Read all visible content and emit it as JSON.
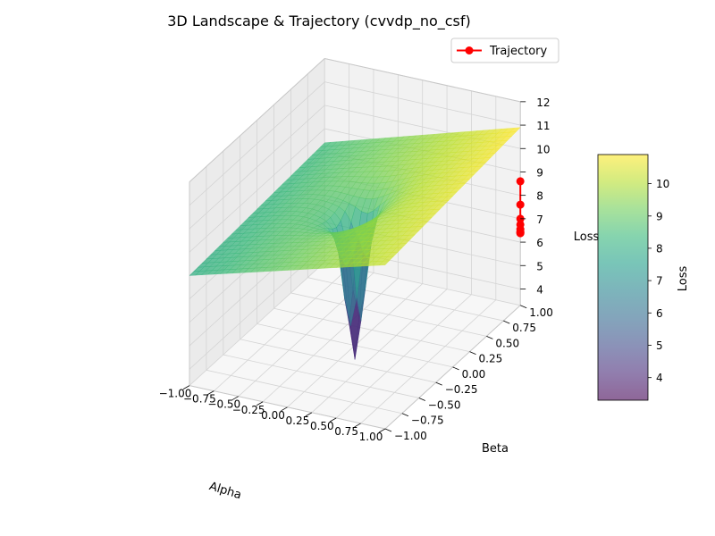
{
  "chart_data": {
    "type": "surface3d",
    "title": "3D Landscape & Trajectory (cvvdp_no_csf)",
    "xlabel": "Alpha",
    "ylabel": "Beta",
    "zlabel": "Loss",
    "xlim": [
      -1.0,
      1.0
    ],
    "ylim": [
      -1.0,
      1.0
    ],
    "zlim": [
      3.3,
      12
    ],
    "x_ticks": [
      "−1.00",
      "−0.75",
      "−0.50",
      "−0.25",
      "0.00",
      "0.25",
      "0.50",
      "0.75",
      "1.00"
    ],
    "y_ticks": [
      "−1.00",
      "−0.75",
      "−0.50",
      "−0.25",
      "0.00",
      "0.25",
      "0.50",
      "0.75",
      "1.00"
    ],
    "z_ticks": [
      "4",
      "5",
      "6",
      "7",
      "8",
      "9",
      "10",
      "11",
      "12"
    ],
    "grid": true,
    "colormap": "viridis",
    "surface": {
      "x": [
        -1.0,
        1.0
      ],
      "y": [
        -1.0,
        1.0
      ],
      "loss_corners": {
        "alpha_-1_beta_-1": 8.0,
        "alpha_1_beta_-1": 10.3,
        "alpha_-1_beta_1": 8.4,
        "alpha_1_beta_1": 10.9
      },
      "minimum": {
        "alpha": 0.0,
        "beta": 0.0,
        "loss": 3.7
      }
    },
    "series": [
      {
        "name": "Trajectory",
        "color": "#ff0000",
        "marker": "circle",
        "alpha": [
          1.0,
          1.0,
          1.0,
          1.0,
          1.0,
          1.0,
          1.0,
          1.0
        ],
        "beta": [
          1.0,
          1.0,
          1.0,
          1.0,
          1.0,
          1.0,
          1.0,
          1.0
        ],
        "loss": [
          8.6,
          7.6,
          7.0,
          6.75,
          6.55,
          6.45,
          6.4,
          6.38
        ]
      }
    ],
    "legend": {
      "position": "top-right",
      "entries": [
        "Trajectory"
      ]
    },
    "colorbar": {
      "label": "Loss",
      "range": [
        3.3,
        10.9
      ],
      "ticks": [
        "4",
        "5",
        "6",
        "7",
        "8",
        "9",
        "10"
      ],
      "alpha": 0.6
    }
  },
  "colors": {
    "pane_side": "#ebebeb",
    "pane_back": "#f2f2f2",
    "pane_floor": "#f7f7f7",
    "grid": "#d4d4d4",
    "trajectory": "#ff0000"
  }
}
